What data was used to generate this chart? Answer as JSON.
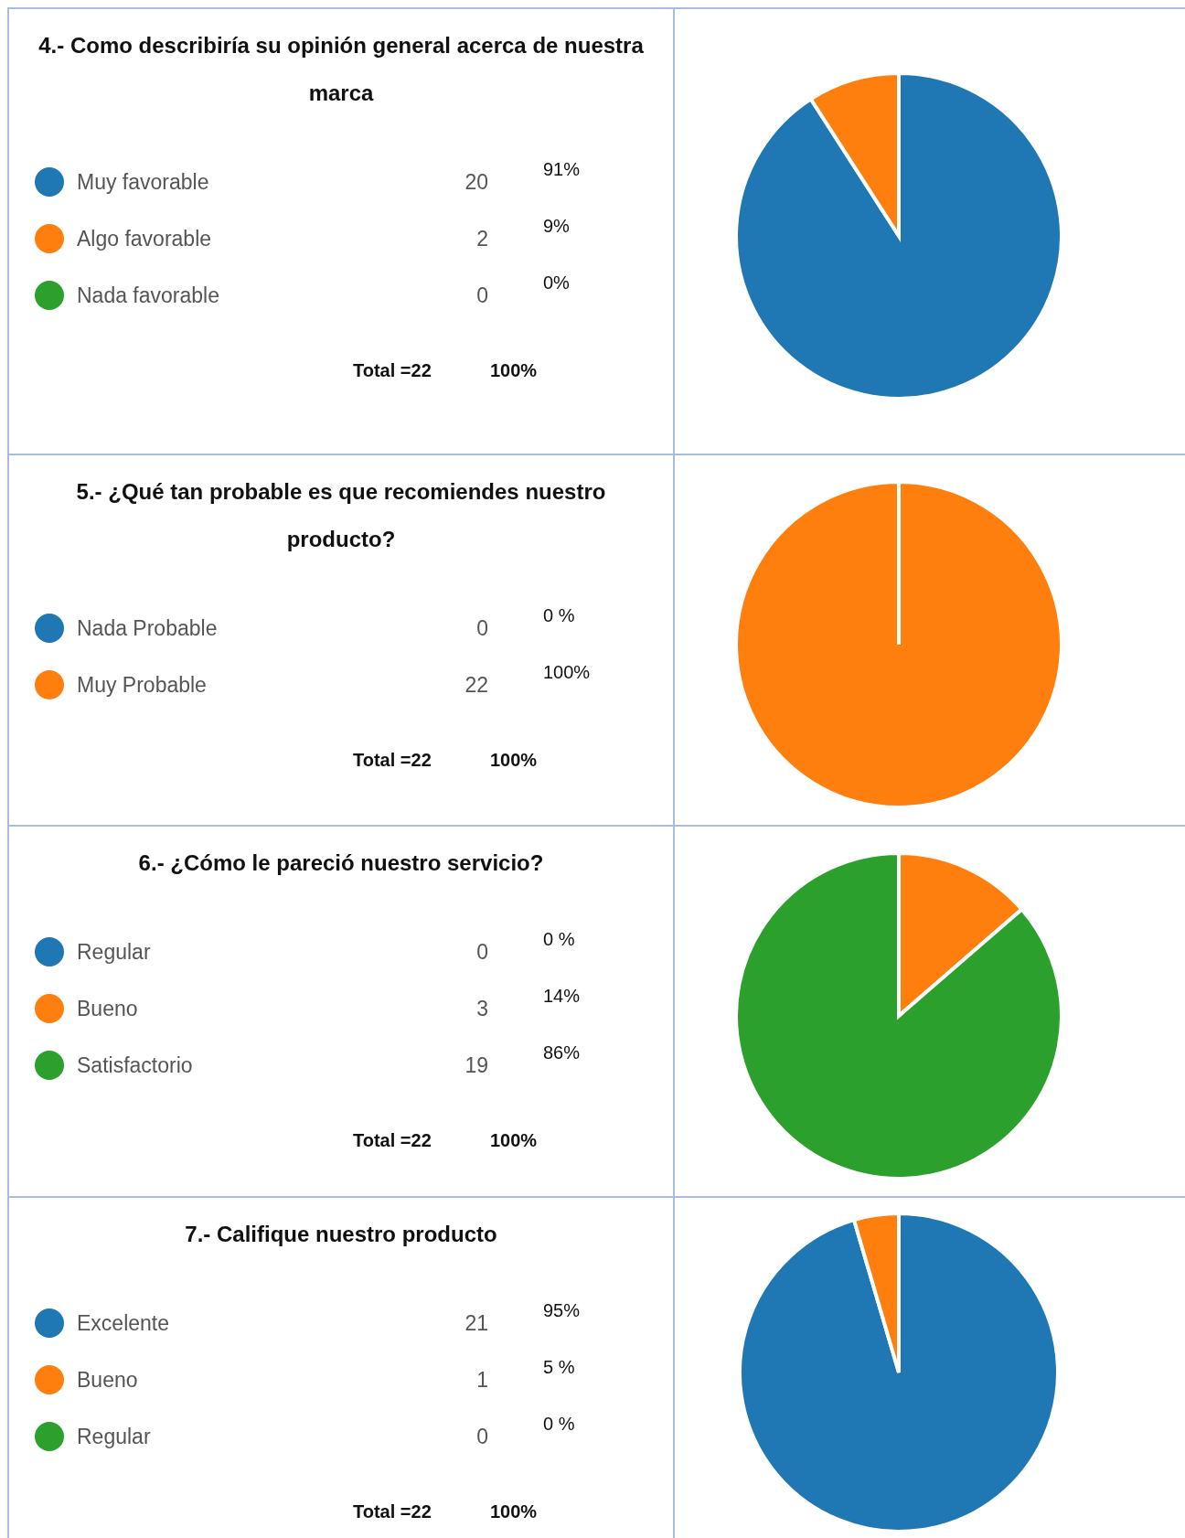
{
  "chart_data": [
    {
      "type": "pie",
      "title": "4.- Como describiría su opinión general acerca de nuestra marca",
      "categories": [
        "Muy favorable",
        "Algo favorable",
        "Nada favorable"
      ],
      "values": [
        20,
        2,
        0
      ],
      "colors": [
        "#1f77b4",
        "#ff7f0e",
        "#2ca02c"
      ],
      "legend": "left",
      "value_labels": [
        "20",
        "2",
        "0"
      ],
      "annotations": [
        "91%",
        "9%",
        "0%",
        "Total =22",
        "100%"
      ]
    },
    {
      "type": "pie",
      "title": "5.- ¿Qué tan probable es que recomiendes nuestro producto?",
      "categories": [
        "Nada Probable",
        "Muy Probable"
      ],
      "values": [
        0,
        22
      ],
      "colors": [
        "#1f77b4",
        "#ff7f0e"
      ],
      "legend": "left",
      "value_labels": [
        "0",
        "22"
      ],
      "annotations": [
        "0 %",
        "100%",
        "Total =22",
        "100%"
      ]
    },
    {
      "type": "pie",
      "title": "6.- ¿Cómo le pareció nuestro servicio?",
      "categories": [
        "Regular",
        "Bueno",
        "Satisfactorio"
      ],
      "values": [
        0,
        3,
        19
      ],
      "colors": [
        "#1f77b4",
        "#ff7f0e",
        "#2ca02c"
      ],
      "legend": "left",
      "value_labels": [
        "0",
        "3",
        "19"
      ],
      "annotations": [
        "0 %",
        "14%",
        "86%",
        "Total =22",
        "100%"
      ]
    },
    {
      "type": "pie",
      "title": "7.- Califique nuestro producto",
      "categories": [
        "Excelente",
        "Bueno",
        "Regular"
      ],
      "values": [
        21,
        1,
        0
      ],
      "colors": [
        "#1f77b4",
        "#ff7f0e",
        "#2ca02c"
      ],
      "legend": "left",
      "value_labels": [
        "21",
        "1",
        "0"
      ],
      "annotations": [
        "95%",
        "5 %",
        "0 %",
        "Total =22",
        "100%"
      ]
    }
  ]
}
